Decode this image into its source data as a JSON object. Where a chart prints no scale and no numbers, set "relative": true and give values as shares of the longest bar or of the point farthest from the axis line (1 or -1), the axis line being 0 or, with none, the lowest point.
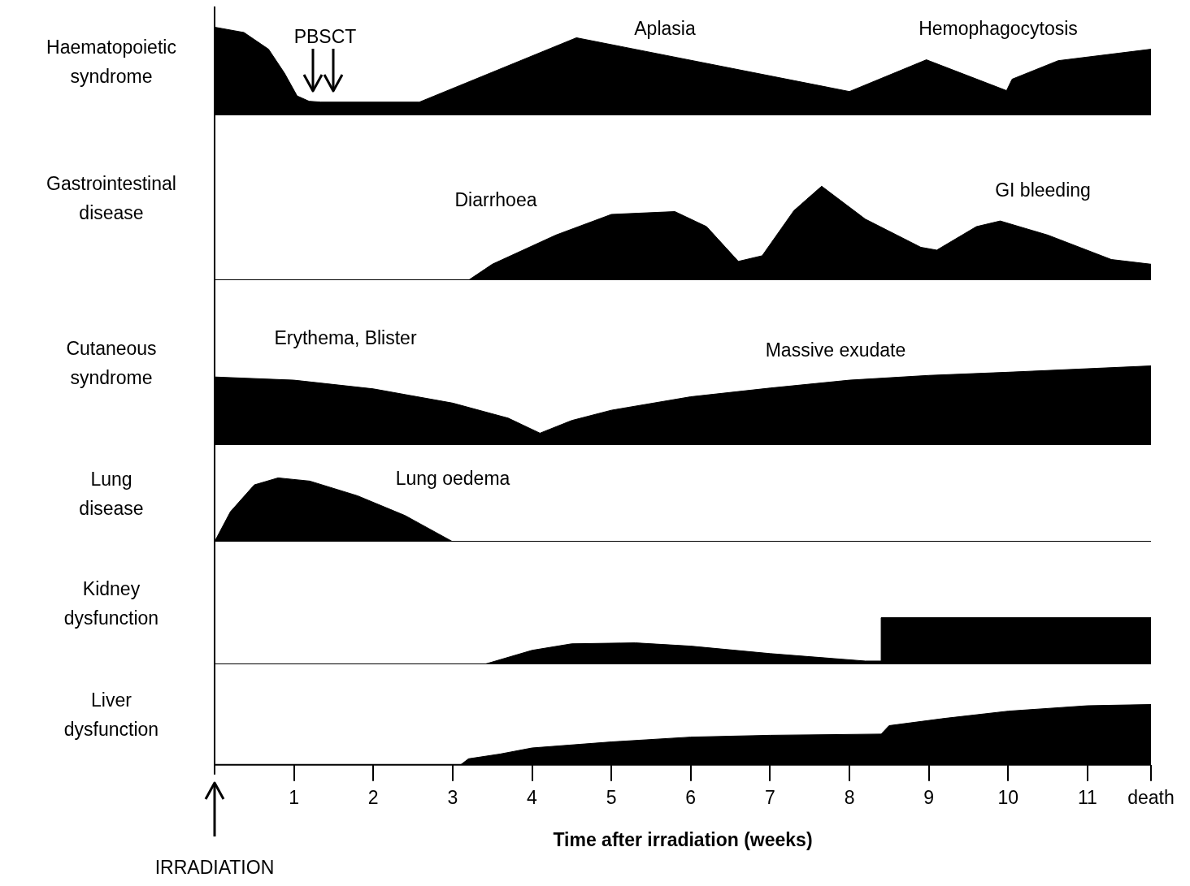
{
  "chart_data": [
    {
      "type": "area",
      "ylabel": "Haematopoietic\nsyndrome",
      "relative": true,
      "color": "#000000",
      "tick_labels": false,
      "xlim": [
        0,
        11.8
      ],
      "x": [
        0,
        0.37,
        0.68,
        0.88,
        1.04,
        1.19,
        1.34,
        2.58,
        4.56,
        8.0,
        8.97,
        9.98,
        10.05,
        10.63,
        11.8
      ],
      "values": [
        1.0,
        0.94,
        0.75,
        0.48,
        0.22,
        0.16,
        0.15,
        0.15,
        0.88,
        0.27,
        0.63,
        0.28,
        0.41,
        0.62,
        0.75
      ],
      "annotations": [
        "PBSCT",
        "Aplasia",
        "Hemophagocytosis"
      ]
    },
    {
      "type": "area",
      "ylabel": "Gastrointestinal\ndisease",
      "relative": true,
      "color": "#000000",
      "tick_labels": false,
      "xlim": [
        0,
        11.8
      ],
      "x": [
        3.2,
        3.5,
        4.3,
        5.0,
        5.8,
        6.2,
        6.6,
        6.9,
        7.3,
        7.65,
        8.2,
        8.9,
        9.1,
        9.6,
        9.9,
        10.5,
        11.3,
        11.8
      ],
      "values": [
        0,
        0.17,
        0.48,
        0.7,
        0.73,
        0.57,
        0.2,
        0.26,
        0.74,
        1.0,
        0.65,
        0.35,
        0.32,
        0.57,
        0.63,
        0.48,
        0.22,
        0.17
      ],
      "annotations": [
        "Diarrhoea",
        "GI bleeding"
      ]
    },
    {
      "type": "area",
      "ylabel": "Cutaneous\nsyndrome",
      "relative": true,
      "color": "#000000",
      "tick_labels": false,
      "xlim": [
        0,
        11.8
      ],
      "x": [
        0,
        1,
        2,
        3,
        3.7,
        4.1,
        4.5,
        5,
        6,
        7,
        8,
        9,
        10,
        11.8
      ],
      "values": [
        0.86,
        0.82,
        0.71,
        0.53,
        0.34,
        0.15,
        0.31,
        0.44,
        0.61,
        0.72,
        0.82,
        0.88,
        0.92,
        1.0
      ],
      "annotations": [
        "Erythema, Blister",
        "Massive exudate"
      ]
    },
    {
      "type": "area",
      "ylabel": "Lung\ndisease",
      "relative": true,
      "color": "#000000",
      "tick_labels": false,
      "xlim": [
        0,
        11.8
      ],
      "x": [
        0,
        0.2,
        0.5,
        0.8,
        1.2,
        1.8,
        2.4,
        3.0
      ],
      "values": [
        0,
        0.47,
        0.89,
        1.0,
        0.95,
        0.72,
        0.41,
        0
      ],
      "annotations": [
        "Lung oedema"
      ]
    },
    {
      "type": "area",
      "ylabel": "Kidney\ndysfunction",
      "relative": true,
      "color": "#000000",
      "tick_labels": false,
      "xlim": [
        0,
        11.8
      ],
      "x": [
        3.4,
        4,
        4.5,
        5.3,
        6,
        7,
        8.2,
        8.4,
        8.4,
        11.8
      ],
      "values": [
        0,
        0.3,
        0.44,
        0.46,
        0.39,
        0.23,
        0.07,
        0.07,
        1.0,
        1.0
      ]
    },
    {
      "type": "area",
      "ylabel": "Liver\ndysfunction",
      "relative": true,
      "color": "#000000",
      "tick_labels": "x",
      "xlim": [
        0,
        11.8
      ],
      "xticks": [
        1,
        2,
        3,
        4,
        5,
        6,
        7,
        8,
        9,
        10,
        11,
        {
          "value": 11.8,
          "label": "death"
        }
      ],
      "xlabel": "Time after irradiation (weeks)",
      "x": [
        3.1,
        3.2,
        3.6,
        4,
        5,
        6,
        7,
        8.4,
        8.5,
        9.2,
        10,
        11,
        11.8
      ],
      "values": [
        0,
        0.1,
        0.18,
        0.28,
        0.38,
        0.46,
        0.49,
        0.51,
        0.65,
        0.77,
        0.89,
        0.98,
        1.0
      ],
      "annotations": [
        "IRRADIATION"
      ]
    }
  ]
}
